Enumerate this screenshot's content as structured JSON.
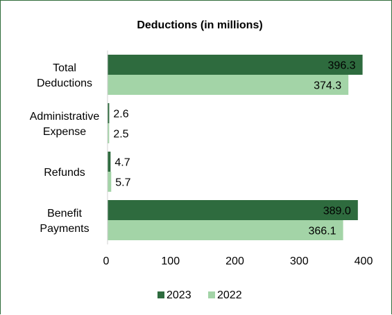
{
  "chart_data": {
    "type": "bar",
    "orientation": "horizontal",
    "title": "Deductions (in millions)",
    "categories": [
      [
        "Total",
        "Deductions"
      ],
      [
        "Administrative",
        "Expense"
      ],
      [
        "Refunds"
      ],
      [
        "Benefit",
        "Payments"
      ]
    ],
    "series": [
      {
        "name": "2023",
        "color": "#2e6b3e",
        "values": [
          396.3,
          2.6,
          4.7,
          389.0
        ],
        "labels": [
          "396.3",
          "2.6",
          "4.7",
          "389.0"
        ]
      },
      {
        "name": "2022",
        "color": "#a3d4a7",
        "values": [
          374.3,
          2.5,
          5.7,
          366.1
        ],
        "labels": [
          "374.3",
          "2.5",
          "5.7",
          "366.1"
        ]
      }
    ],
    "xlim": [
      0,
      400
    ],
    "xticks": [
      "0",
      "100",
      "200",
      "300",
      "400"
    ],
    "grid": false,
    "legend_position": "bottom"
  }
}
